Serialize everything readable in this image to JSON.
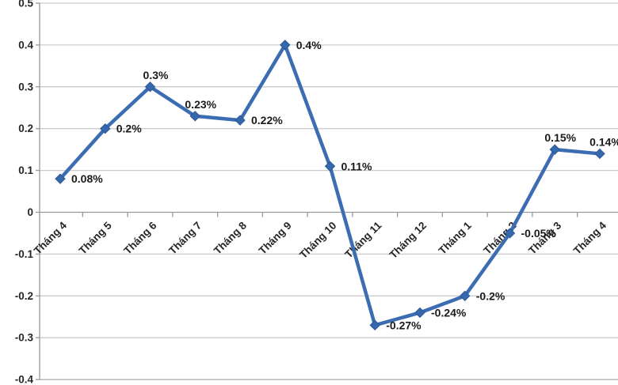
{
  "chart_data": {
    "type": "line",
    "title": "",
    "series_name": "",
    "legend": "none",
    "grid": true,
    "categories": [
      "Tháng 4",
      "Tháng 5",
      "Tháng 6",
      "Tháng 7",
      "Tháng 8",
      "Tháng 9",
      "Tháng 10",
      "Tháng 11",
      "Tháng 12",
      "Tháng 1",
      "Tháng 2",
      "Tháng 3",
      "Tháng 4"
    ],
    "values": [
      0.08,
      0.2,
      0.3,
      0.23,
      0.22,
      0.4,
      0.11,
      -0.27,
      -0.24,
      -0.2,
      -0.05,
      0.15,
      0.14
    ],
    "data_labels": [
      "0.08%",
      "0.2%",
      "0.3%",
      "0.23%",
      "0.22%",
      "0.4%",
      "0.11%",
      "-0.27%",
      "-0.24%",
      "-0.2%",
      "-0.05%",
      "0.15%",
      "0.14%"
    ],
    "label_positions": [
      "right",
      "right",
      "above",
      "above",
      "right",
      "right",
      "right",
      "right",
      "right",
      "right",
      "right",
      "above",
      "above"
    ],
    "y_tick_labels": [
      "0.5",
      "0.4",
      "0.3",
      "0.2",
      "0.1",
      "0",
      "-0.1",
      "-0.2",
      "-0.3",
      "-0.4"
    ],
    "y_ticks": [
      0.5,
      0.4,
      0.3,
      0.2,
      0.1,
      0,
      -0.1,
      -0.2,
      -0.3,
      -0.4
    ],
    "ylim": [
      -0.4,
      0.5
    ],
    "x_label_rotation_deg": -45,
    "colors": {
      "line": "#3C6CB2",
      "marker_fill": "#3668AE",
      "marker_border": "#2B5793",
      "gridline": "#CBCBCB",
      "axis": "#989898",
      "bottom_border": "#A8A8A8",
      "axis_text": "#262626",
      "data_label_text": "#1A1A1A",
      "background": "#FFFFFF"
    }
  }
}
